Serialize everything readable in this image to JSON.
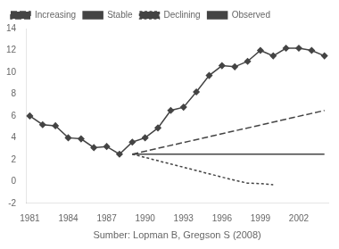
{
  "chart_data": {
    "type": "line",
    "x_label": "Sumber: Lopman B, Gregson S (2008)",
    "series": [
      {
        "name": "Increasing",
        "color": "#444444",
        "line_style": "long_dash",
        "marker": "none",
        "x": [
          1989,
          2004
        ],
        "values": [
          2.5,
          6.5
        ]
      },
      {
        "name": "Stable",
        "color": "#444444",
        "line_style": "solid",
        "marker": "none",
        "x": [
          1989,
          2004
        ],
        "values": [
          2.5,
          2.5
        ]
      },
      {
        "name": "Declining",
        "color": "#444444",
        "line_style": "short_dash",
        "marker": "none",
        "x": [
          1989,
          1990,
          1991,
          1992,
          1993,
          1994,
          1995,
          1996,
          1997,
          1998,
          1999,
          2000
        ],
        "values": [
          2.5,
          2.2,
          1.9,
          1.6,
          1.3,
          1.0,
          0.7,
          0.4,
          0.1,
          -0.15,
          -0.2,
          -0.3
        ]
      },
      {
        "name": "Observed",
        "color": "#444444",
        "line_style": "solid",
        "marker": "diamond",
        "x": [
          1981,
          1982,
          1983,
          1984,
          1985,
          1986,
          1987,
          1988,
          1989,
          1990,
          1991,
          1992,
          1993,
          1994,
          1995,
          1996,
          1997,
          1998,
          1999,
          2000,
          2001,
          2002,
          2003,
          2004
        ],
        "values": [
          6.0,
          5.2,
          5.1,
          4.0,
          3.9,
          3.1,
          3.2,
          2.5,
          3.6,
          4.0,
          4.9,
          6.5,
          6.8,
          8.2,
          9.7,
          10.6,
          10.5,
          11.0,
          12.0,
          11.5,
          12.2,
          12.2,
          12.0,
          11.5
        ]
      }
    ],
    "xlim": [
      1980.7,
      2004.3
    ],
    "xticks": [
      1981,
      1984,
      1987,
      1990,
      1993,
      1996,
      1999,
      2002
    ],
    "ylim": [
      -2,
      14
    ],
    "yticks": [
      -2,
      0,
      2,
      4,
      6,
      8,
      10,
      12,
      14
    ],
    "grid": false,
    "legend": "upper left"
  }
}
